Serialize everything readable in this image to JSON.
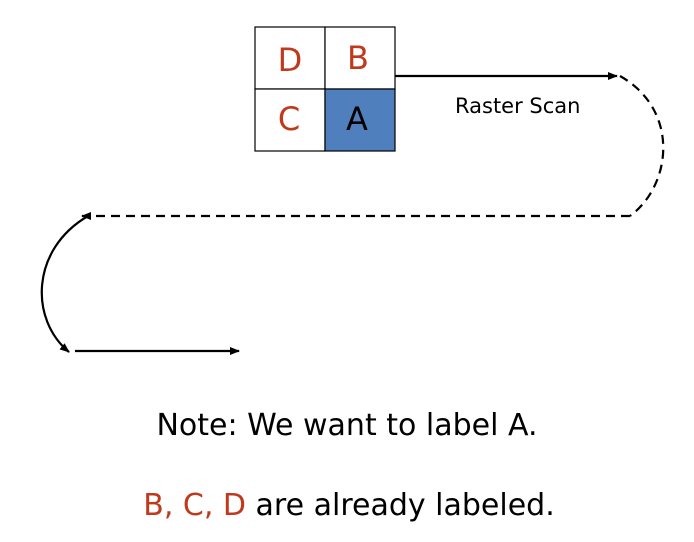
{
  "grid": {
    "cells": {
      "top_left": "D",
      "top_right": "B",
      "bottom_left": "C",
      "bottom_right": "A"
    }
  },
  "scan_label": "Raster Scan",
  "note": {
    "line1": "Note: We want to label A.",
    "line2_red": "B, C, D",
    "line2_rest": " are already labeled."
  },
  "colors": {
    "labeled_letter": "#c0391b",
    "current_fill": "#4f7fbd",
    "black": "#000000"
  }
}
